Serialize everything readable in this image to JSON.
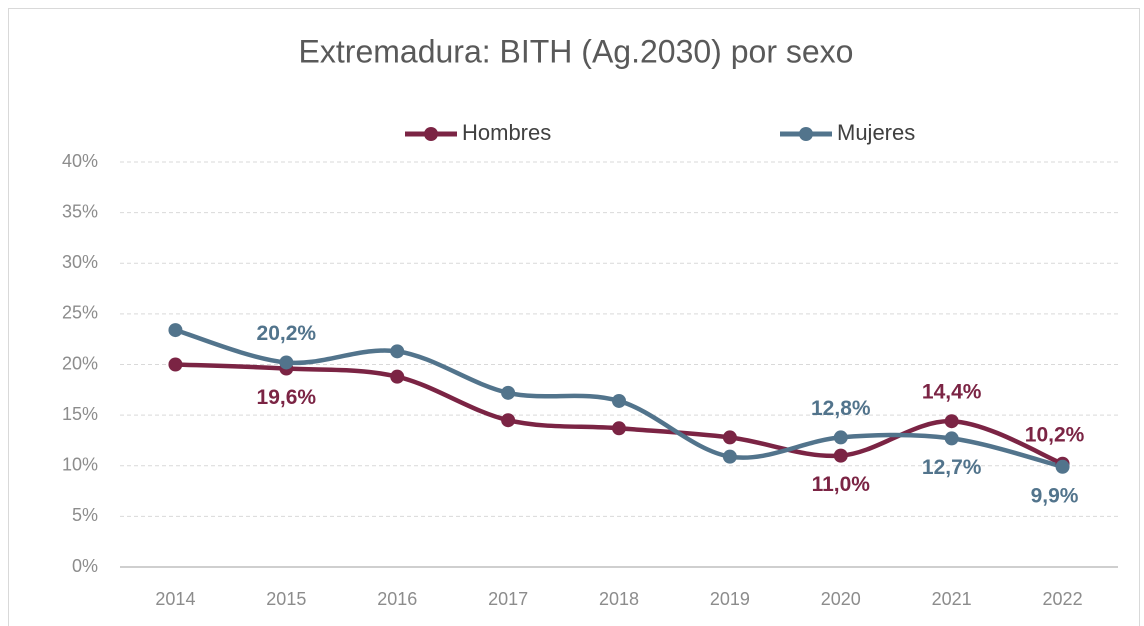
{
  "chart_data": {
    "type": "line",
    "title": "Extremadura: BITH (Ag.2030) por sexo",
    "categories": [
      "2014",
      "2015",
      "2016",
      "2017",
      "2018",
      "2019",
      "2020",
      "2021",
      "2022"
    ],
    "series": [
      {
        "name": "Hombres",
        "color": "#7b2444",
        "values": [
          20.0,
          19.6,
          18.8,
          14.5,
          13.7,
          12.8,
          11.0,
          14.4,
          10.2
        ],
        "value_labels": [
          null,
          "19,6%",
          null,
          null,
          null,
          null,
          "11,0%",
          "14,4%",
          "10,2%"
        ]
      },
      {
        "name": "Mujeres",
        "color": "#52748c",
        "values": [
          23.4,
          20.2,
          21.3,
          17.2,
          16.4,
          10.9,
          12.8,
          12.7,
          9.9
        ],
        "value_labels": [
          null,
          "20,2%",
          null,
          null,
          null,
          null,
          "12,8%",
          "12,7%",
          "9,9%"
        ]
      }
    ],
    "ylim": [
      0,
      40
    ],
    "yticks": [
      {
        "value": 0,
        "label": "0%"
      },
      {
        "value": 5,
        "label": "5%"
      },
      {
        "value": 10,
        "label": "10%"
      },
      {
        "value": 15,
        "label": "15%"
      },
      {
        "value": 20,
        "label": "20%"
      },
      {
        "value": 25,
        "label": "25%"
      },
      {
        "value": 30,
        "label": "30%"
      },
      {
        "value": 35,
        "label": "35%"
      },
      {
        "value": 40,
        "label": "40%"
      }
    ],
    "grid": true,
    "legend": "top"
  }
}
